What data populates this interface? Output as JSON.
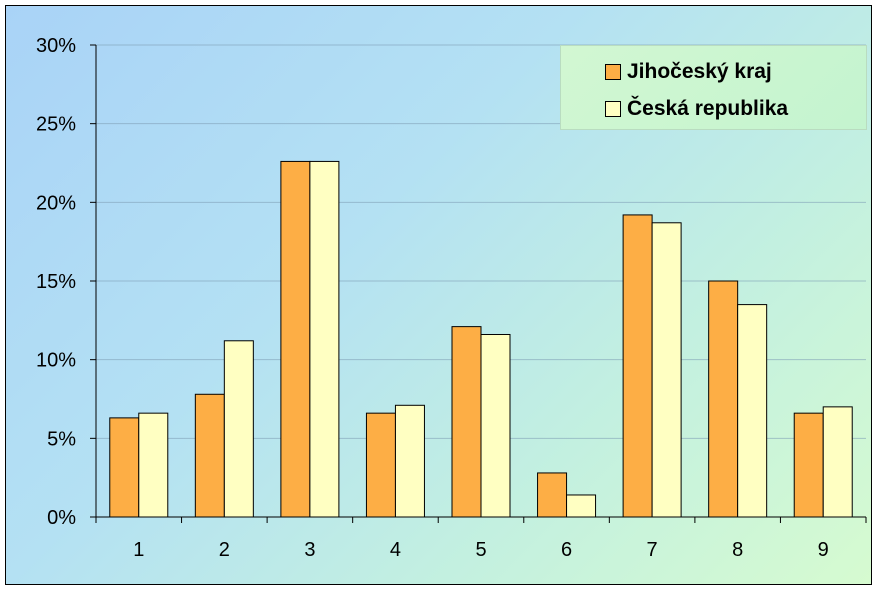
{
  "chart_data": {
    "type": "bar",
    "categories": [
      "1",
      "2",
      "3",
      "4",
      "5",
      "6",
      "7",
      "8",
      "9"
    ],
    "series": [
      {
        "name": "Jihočeský kraj",
        "color": "#fdae45",
        "values": [
          6.3,
          7.8,
          22.6,
          6.6,
          12.1,
          2.8,
          19.2,
          15.0,
          6.6
        ]
      },
      {
        "name": "Česká republika",
        "color": "#ffffc2",
        "values": [
          6.6,
          11.2,
          22.6,
          7.1,
          11.6,
          1.4,
          18.7,
          13.5,
          7.0
        ]
      }
    ],
    "y_ticks": [
      "0%",
      "5%",
      "10%",
      "15%",
      "20%",
      "25%",
      "30%"
    ],
    "ylim": [
      0,
      30
    ],
    "y_unit": "%",
    "grid": true,
    "legend": "top-right",
    "title": "",
    "xlabel": "",
    "ylabel": ""
  }
}
